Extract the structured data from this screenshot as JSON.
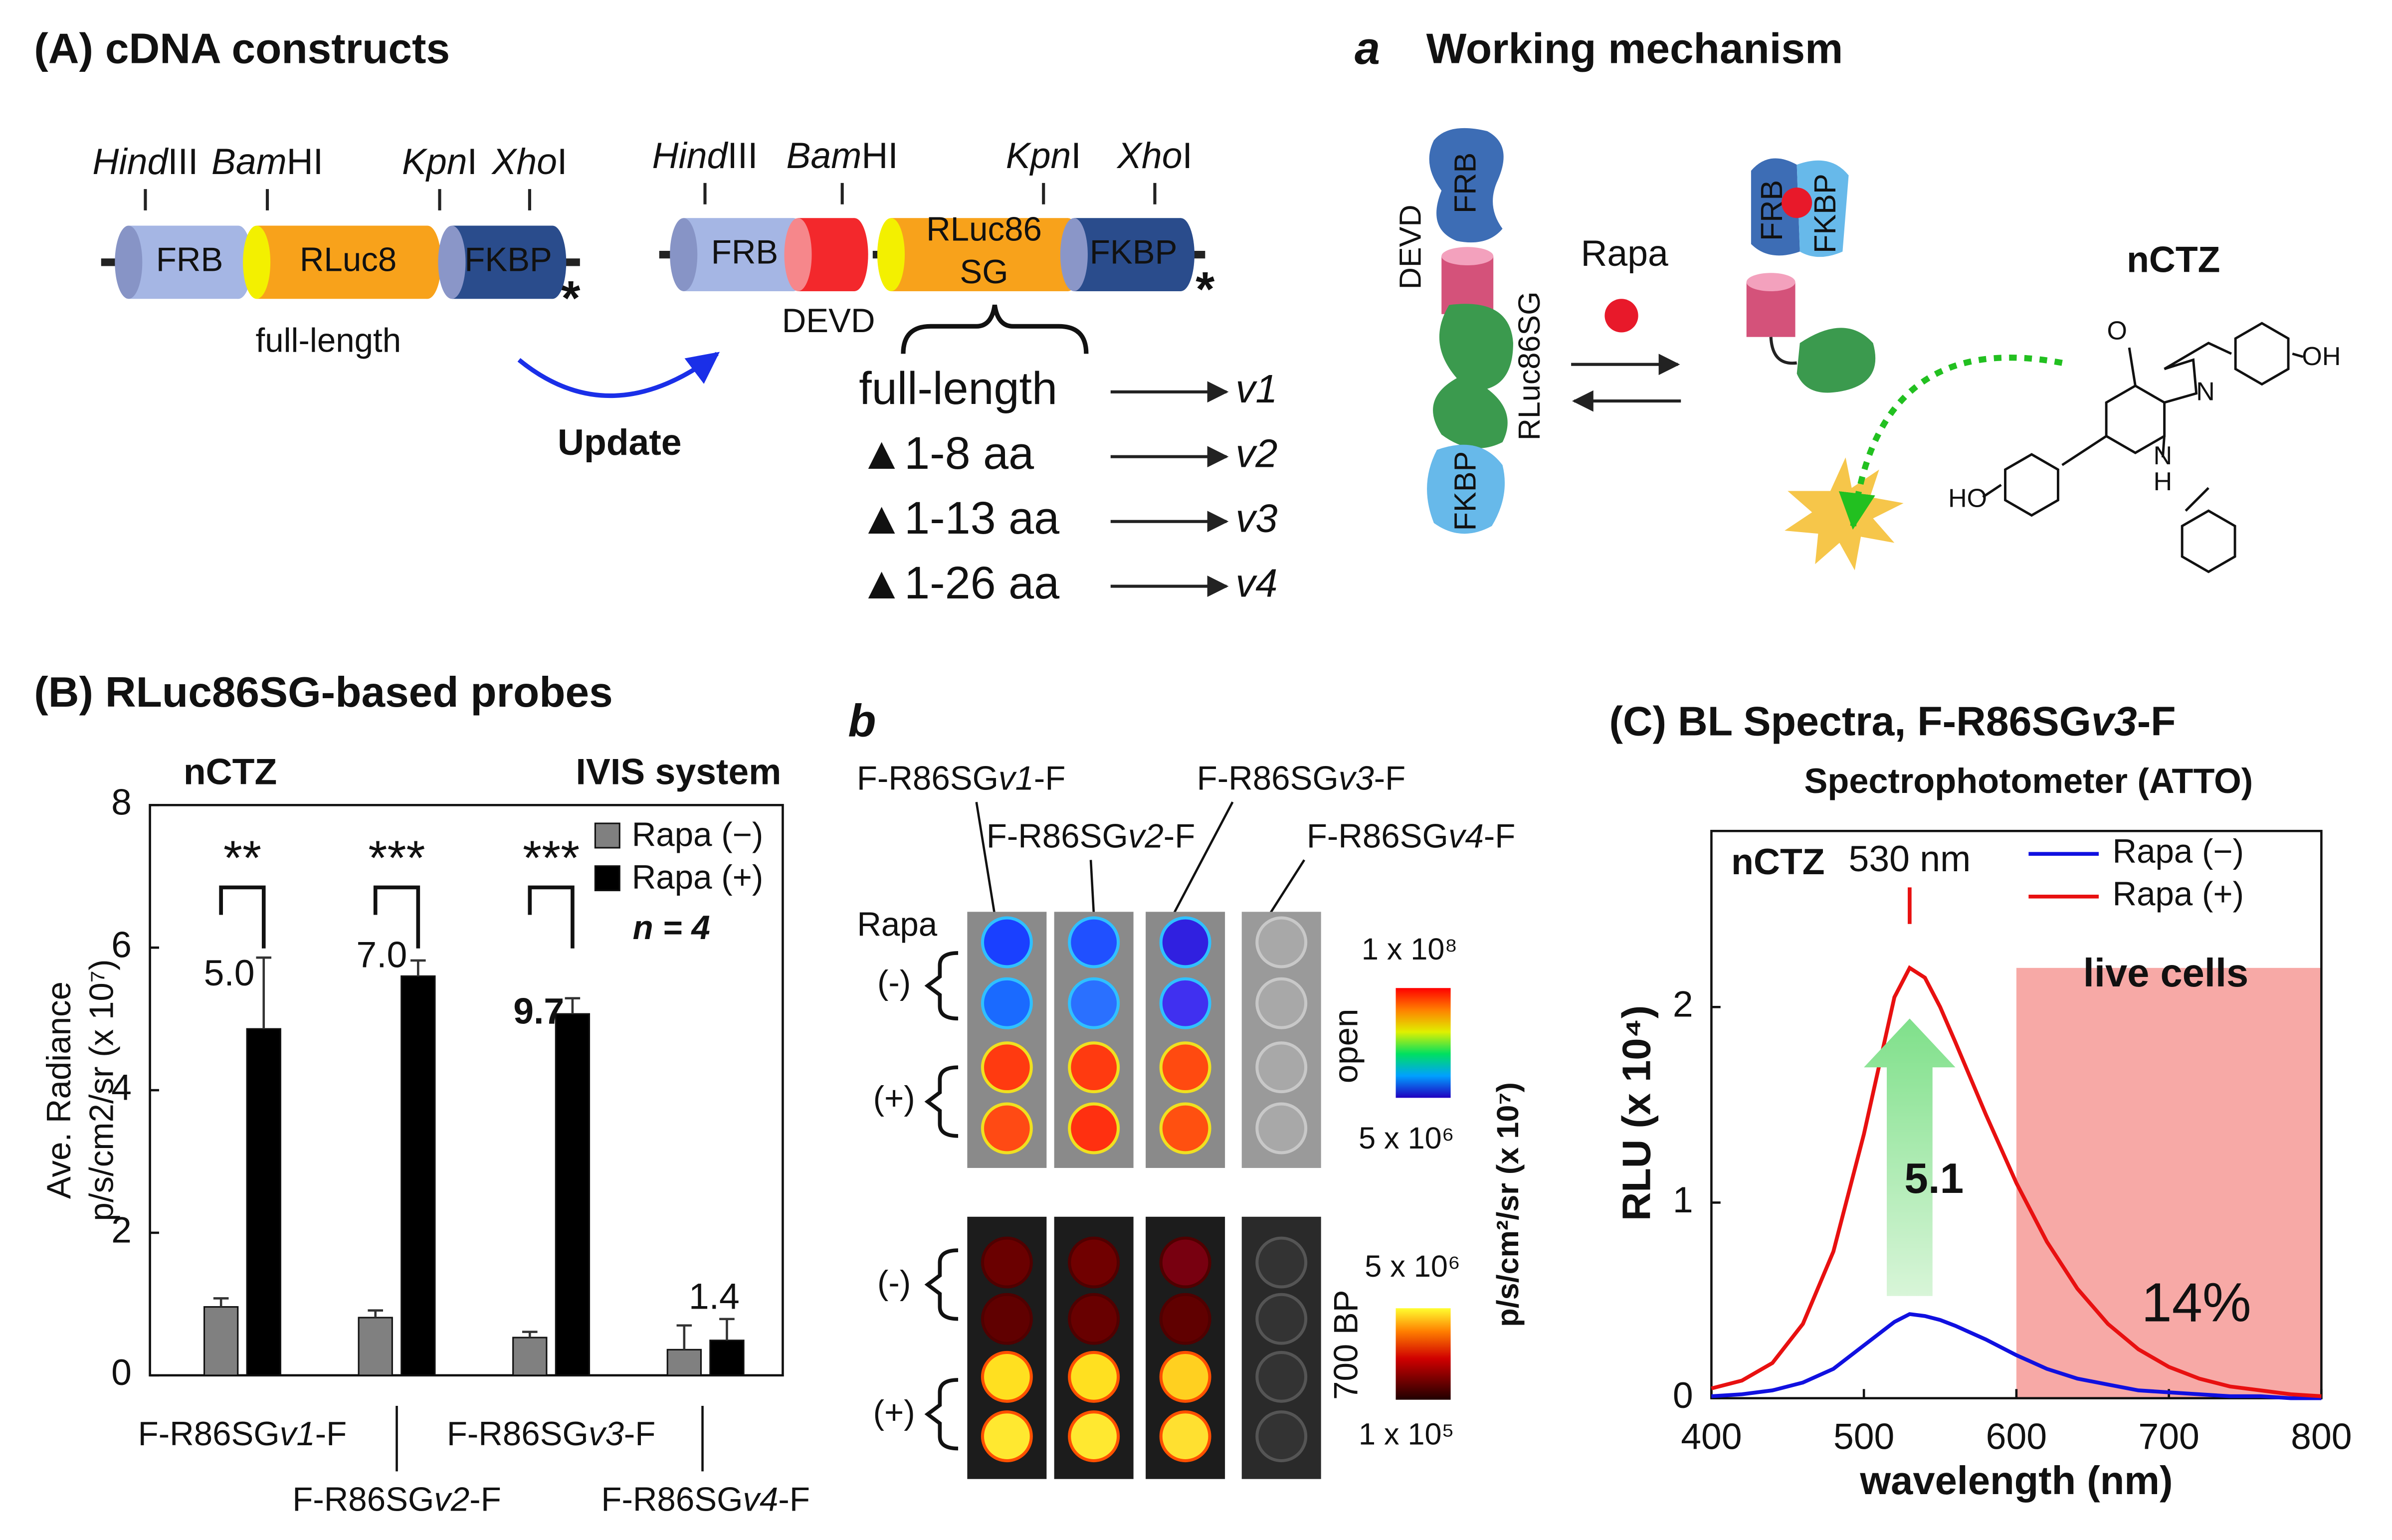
{
  "panelA": {
    "title": "(A) cDNA constructs",
    "construct1": {
      "sites": [
        "HindIII",
        "BamHI",
        "KpnI",
        "XhoI"
      ],
      "domains": [
        "FRB",
        "RLuc8",
        "FKBP"
      ],
      "note": "full-length",
      "stop": "*"
    },
    "update": "Update",
    "construct2": {
      "sites": [
        "HindIII",
        "BamHI",
        "KpnI",
        "XhoI"
      ],
      "domains": [
        "FRB",
        "RLuc86",
        "SG",
        "FKBP"
      ],
      "linker": "DEVD",
      "stop": "*"
    },
    "variants": [
      {
        "name": "full-length",
        "id": "v1"
      },
      {
        "name": "▲1-8 aa",
        "id": "v2"
      },
      {
        "name": "▲1-13 aa",
        "id": "v3"
      },
      {
        "name": "▲1-26 aa",
        "id": "v4"
      }
    ]
  },
  "panelMech": {
    "label": "a",
    "title": "Working mechanism",
    "left": [
      "FRB",
      "DEVD",
      "RLuc86SG",
      "FKBP"
    ],
    "ligand": "Rapa",
    "right": [
      "FRB",
      "FKBP"
    ],
    "substrate": "nCTZ",
    "atoms": [
      "O",
      "N",
      "N",
      "H",
      "OH",
      "HO"
    ]
  },
  "panelImg": {
    "label": "b",
    "probes": [
      "F-R86SGv1-F",
      "F-R86SGv2-F",
      "F-R86SGv3-F",
      "F-R86SGv4-F"
    ],
    "ligand": "Rapa",
    "open": {
      "condition": "open",
      "max": "1 x 10⁸",
      "min": "5 x 10⁶",
      "rows": [
        "(-)",
        "(+)"
      ]
    },
    "bp": {
      "condition": "700 BP",
      "max": "5 x 10⁶",
      "min": "1 x 10⁵",
      "rows": [
        "(-)",
        "(+)"
      ]
    },
    "unit": "p/s/cm²/sr (x 10⁷)"
  },
  "chart_data": [
    {
      "type": "bar",
      "title": "(B) RLuc86SG-based probes",
      "annotations": [
        "nCTZ",
        "IVIS system",
        "n = 4"
      ],
      "ylabel": [
        "Ave. Radiance",
        "p/s/cm2/sr (x 10⁷)"
      ],
      "categories": [
        "F-R86SGv1-F",
        "F-R86SGv2-F",
        "F-R86SGv3-F",
        "F-R86SGv4-F"
      ],
      "series": [
        {
          "name": "Rapa (−)",
          "color": "#808080",
          "values": [
            0.96,
            0.81,
            0.53,
            0.36
          ],
          "errors": [
            0.12,
            0.1,
            0.08,
            0.34
          ]
        },
        {
          "name": "Rapa (+)",
          "color": "#000000",
          "values": [
            4.86,
            5.6,
            5.07,
            0.49
          ],
          "errors": [
            1.0,
            0.22,
            0.22,
            0.3
          ]
        }
      ],
      "fold_changes": [
        "5.0",
        "7.0",
        "9.7",
        "1.4"
      ],
      "significance": [
        "**",
        "***",
        "***"
      ],
      "ylim": [
        0,
        8
      ],
      "yticks": [
        0,
        2,
        4,
        6,
        8
      ]
    },
    {
      "type": "line",
      "title": "(C) BL Spectra, F-R86SGv3-F",
      "subtitle": "Spectrophotometer (ATTO)",
      "annotations": [
        "nCTZ"
      ],
      "xlabel": "wavelength (nm)",
      "ylabel": "RLU (x 10⁴)",
      "x": [
        400,
        420,
        440,
        460,
        480,
        500,
        510,
        520,
        530,
        540,
        550,
        560,
        580,
        600,
        620,
        640,
        660,
        680,
        700,
        720,
        740,
        760,
        780,
        800
      ],
      "series": [
        {
          "name": "Rapa (−)",
          "color": "#1010e0",
          "values": [
            0.01,
            0.02,
            0.04,
            0.08,
            0.15,
            0.27,
            0.33,
            0.39,
            0.43,
            0.42,
            0.4,
            0.37,
            0.3,
            0.22,
            0.15,
            0.1,
            0.07,
            0.04,
            0.03,
            0.02,
            0.01,
            0.01,
            0,
            0
          ]
        },
        {
          "name": "Rapa (+)",
          "color": "#e81010",
          "values": [
            0.05,
            0.09,
            0.18,
            0.38,
            0.75,
            1.35,
            1.7,
            2.05,
            2.2,
            2.15,
            2.0,
            1.82,
            1.45,
            1.1,
            0.8,
            0.56,
            0.38,
            0.25,
            0.16,
            0.1,
            0.06,
            0.04,
            0.02,
            0.01
          ]
        }
      ],
      "peak": {
        "x": 530,
        "label": "530 nm"
      },
      "shaded": {
        "range": [
          600,
          800
        ],
        "label": "live cells",
        "value_label": "14%"
      },
      "fold_label": "5.1",
      "xlim": [
        400,
        800
      ],
      "ylim": [
        0,
        2.9
      ],
      "xticks": [
        400,
        500,
        600,
        700,
        800
      ],
      "yticks": [
        0,
        1,
        2
      ]
    }
  ]
}
